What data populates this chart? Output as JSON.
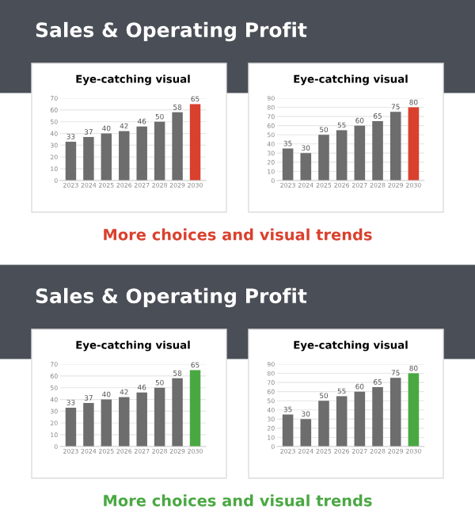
{
  "chart_data": [
    {
      "type": "bar",
      "title": "Eye-catching visual",
      "annotations": [
        "Sales & Operating Profit"
      ],
      "categories": [
        "2023",
        "2024",
        "2025",
        "2026",
        "2027",
        "2028",
        "2029",
        "2030"
      ],
      "values": [
        33,
        37,
        40,
        42,
        46,
        50,
        58,
        65
      ],
      "colors": [
        "#6d6d6d",
        "#6d6d6d",
        "#6d6d6d",
        "#6d6d6d",
        "#6d6d6d",
        "#6d6d6d",
        "#6d6d6d",
        "#d9412e"
      ],
      "ylim": [
        0,
        70
      ],
      "yticks": [
        0,
        10,
        20,
        30,
        40,
        50,
        60,
        70
      ],
      "grid": "y",
      "data_labels": true
    },
    {
      "type": "bar",
      "title": "Eye-catching visual",
      "annotations": [
        "More choices and visual trends"
      ],
      "categories": [
        "2023",
        "2024",
        "2025",
        "2026",
        "2027",
        "2028",
        "2029",
        "2030"
      ],
      "values": [
        35,
        30,
        50,
        55,
        60,
        65,
        75,
        80
      ],
      "colors": [
        "#6d6d6d",
        "#6d6d6d",
        "#6d6d6d",
        "#6d6d6d",
        "#6d6d6d",
        "#6d6d6d",
        "#6d6d6d",
        "#d9412e"
      ],
      "ylim": [
        0,
        90
      ],
      "yticks": [
        0,
        10,
        20,
        30,
        40,
        50,
        60,
        70,
        80,
        90
      ],
      "grid": "y",
      "data_labels": true
    },
    {
      "type": "bar",
      "title": "Eye-catching visual",
      "annotations": [
        "Sales & Operating Profit"
      ],
      "categories": [
        "2023",
        "2024",
        "2025",
        "2026",
        "2027",
        "2028",
        "2029",
        "2030"
      ],
      "values": [
        33,
        37,
        40,
        42,
        46,
        50,
        58,
        65
      ],
      "colors": [
        "#6d6d6d",
        "#6d6d6d",
        "#6d6d6d",
        "#6d6d6d",
        "#6d6d6d",
        "#6d6d6d",
        "#6d6d6d",
        "#4aa843"
      ],
      "ylim": [
        0,
        70
      ],
      "yticks": [
        0,
        10,
        20,
        30,
        40,
        50,
        60,
        70
      ],
      "grid": "y",
      "data_labels": true
    },
    {
      "type": "bar",
      "title": "Eye-catching visual",
      "annotations": [
        "More choices and visual trends"
      ],
      "categories": [
        "2023",
        "2024",
        "2025",
        "2026",
        "2027",
        "2028",
        "2029",
        "2030"
      ],
      "values": [
        35,
        30,
        50,
        55,
        60,
        65,
        75,
        80
      ],
      "colors": [
        "#6d6d6d",
        "#6d6d6d",
        "#6d6d6d",
        "#6d6d6d",
        "#6d6d6d",
        "#6d6d6d",
        "#6d6d6d",
        "#4aa843"
      ],
      "ylim": [
        0,
        90
      ],
      "yticks": [
        0,
        10,
        20,
        30,
        40,
        50,
        60,
        70,
        80,
        90
      ],
      "grid": "y",
      "data_labels": true
    }
  ]
}
